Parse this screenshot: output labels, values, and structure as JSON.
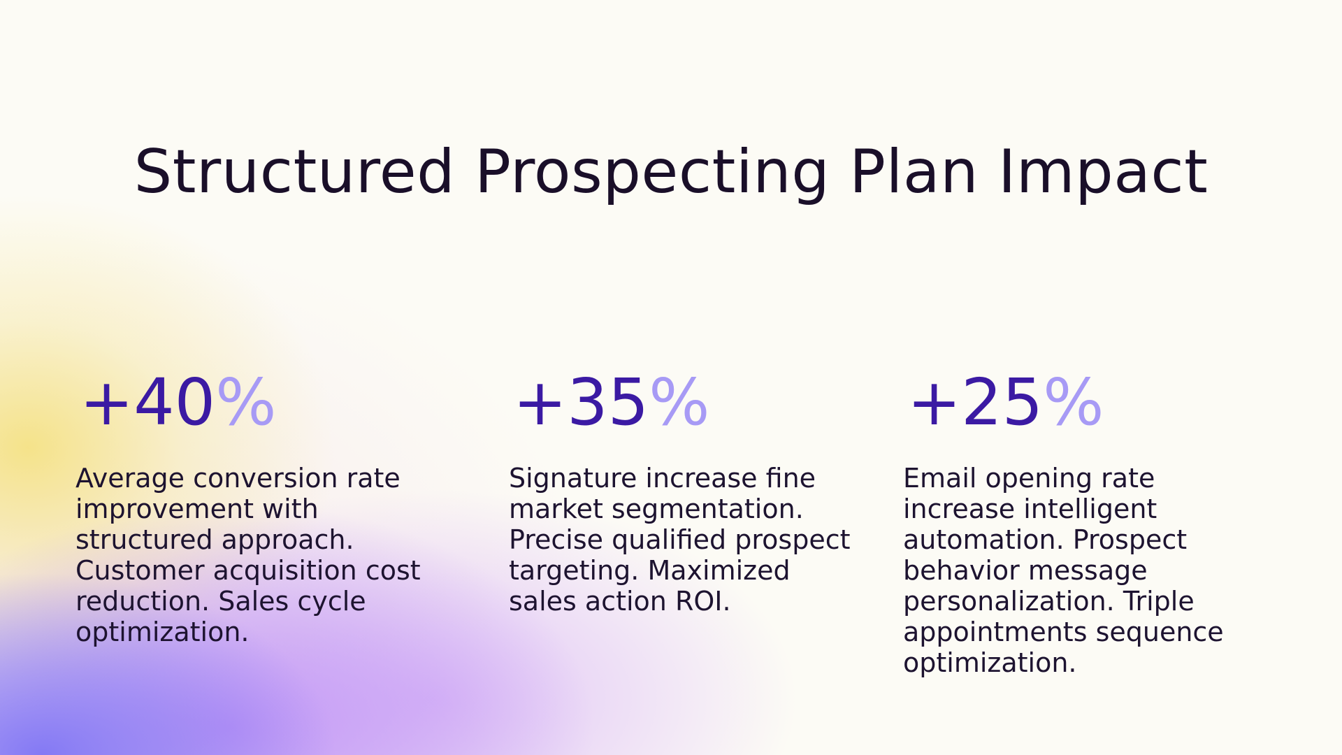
{
  "slide": {
    "title": "Structured Prospecting Plan Impact",
    "metrics": [
      {
        "value": "+40",
        "unit": "%",
        "description": "Average conversion rate improvement with structured approach. Customer acquisition cost reduction. Sales cycle optimization."
      },
      {
        "value": "+35",
        "unit": "%",
        "description": "Signature increase fine market segmentation. Precise qualified prospect targeting. Maximized sales action ROI."
      },
      {
        "value": "+25",
        "unit": "%",
        "description": "Email opening rate increase intelligent automation. Prospect behavior message personalization. Triple appointments sequence optimization."
      }
    ]
  },
  "colors": {
    "background": "#fcfbf5",
    "title": "#1a0f29",
    "stat_number": "#3b1aa3",
    "stat_percent": "#a79af5",
    "body_text": "#1d1330",
    "gradient_purple": "#7f75f4",
    "gradient_lilac": "#ba8cf6",
    "gradient_yellow": "#f4e078"
  }
}
